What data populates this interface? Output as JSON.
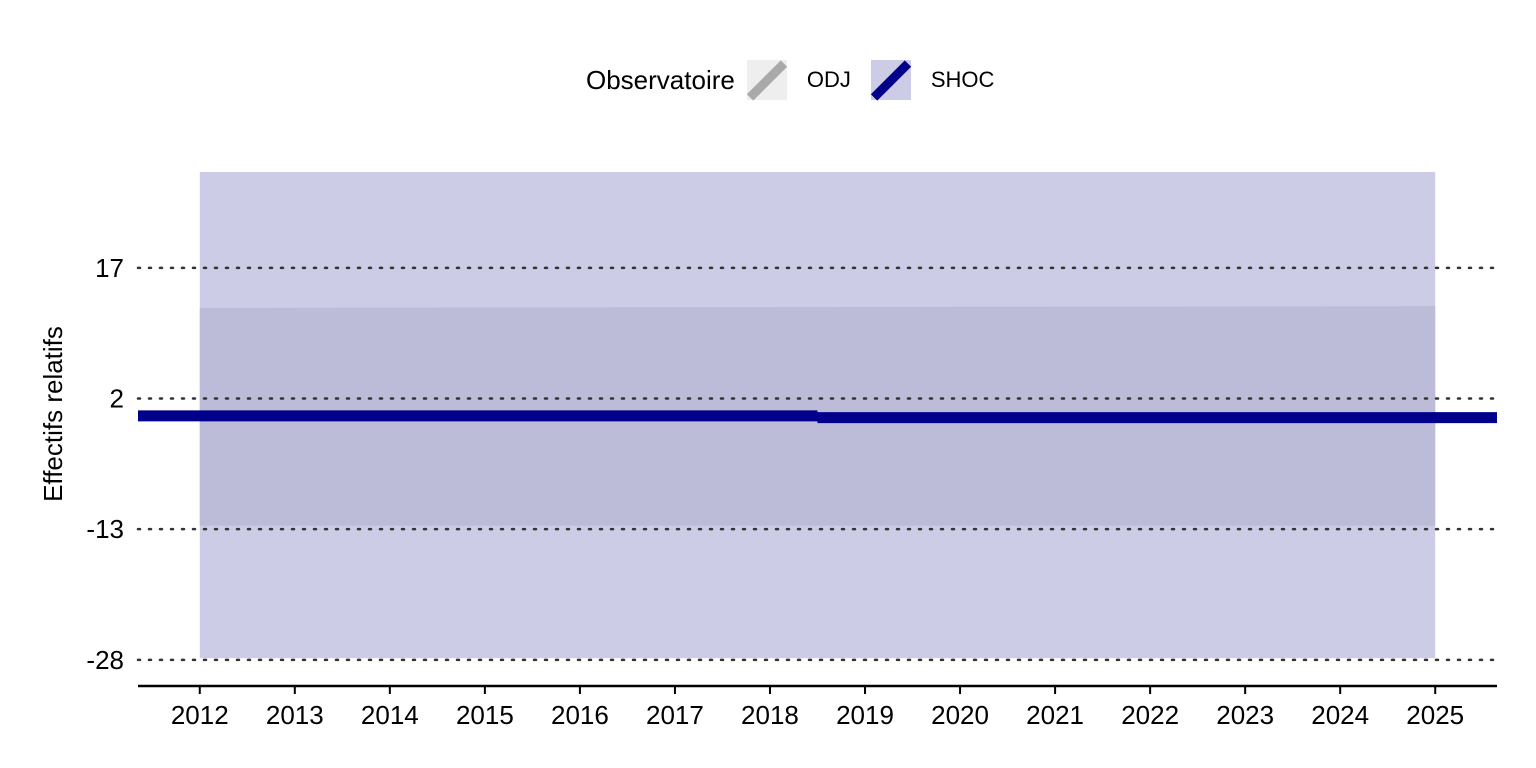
{
  "legend": {
    "title": "Observatoire",
    "items": [
      {
        "label": "ODJ",
        "line_color": "#aaaaaa",
        "fill_color": "#eeeeee"
      },
      {
        "label": "SHOC",
        "line_color": "#00008b",
        "fill_color": "#cccce6"
      }
    ]
  },
  "colors": {
    "band_outer": "#cccce6",
    "band_inner": "#bcbcd8",
    "line": "#00008b",
    "grid": "#333333",
    "axis": "#000000"
  },
  "chart_data": {
    "type": "line",
    "xlabel": "",
    "ylabel": "Effectifs relatifs",
    "x": [
      2012,
      2013,
      2014,
      2015,
      2016,
      2017,
      2018,
      2019,
      2020,
      2021,
      2022,
      2023,
      2024,
      2025
    ],
    "xlim": [
      2011.35,
      2025.65
    ],
    "ylim": [
      -31,
      28
    ],
    "yticks": [
      -28,
      -13,
      2,
      17
    ],
    "grid": "horizontal dotted",
    "legend_position": "top",
    "series": [
      {
        "name": "SHOC",
        "segments": [
          {
            "x": [
              2011.35,
              2018.5
            ],
            "y": [
              0,
              0
            ]
          },
          {
            "x": [
              2018.5,
              2025.65
            ],
            "y": [
              -0.2,
              -0.2
            ]
          }
        ],
        "band_outer": {
          "x": [
            2012,
            2025
          ],
          "lower": [
            -27.8,
            -27.8
          ],
          "upper": [
            28,
            28
          ]
        },
        "band_inner": {
          "x": [
            2012,
            2018.5,
            2025
          ],
          "lower": [
            -12.6,
            -12.6,
            -12.6
          ],
          "upper": [
            12.4,
            12.5,
            12.6
          ]
        }
      }
    ]
  }
}
